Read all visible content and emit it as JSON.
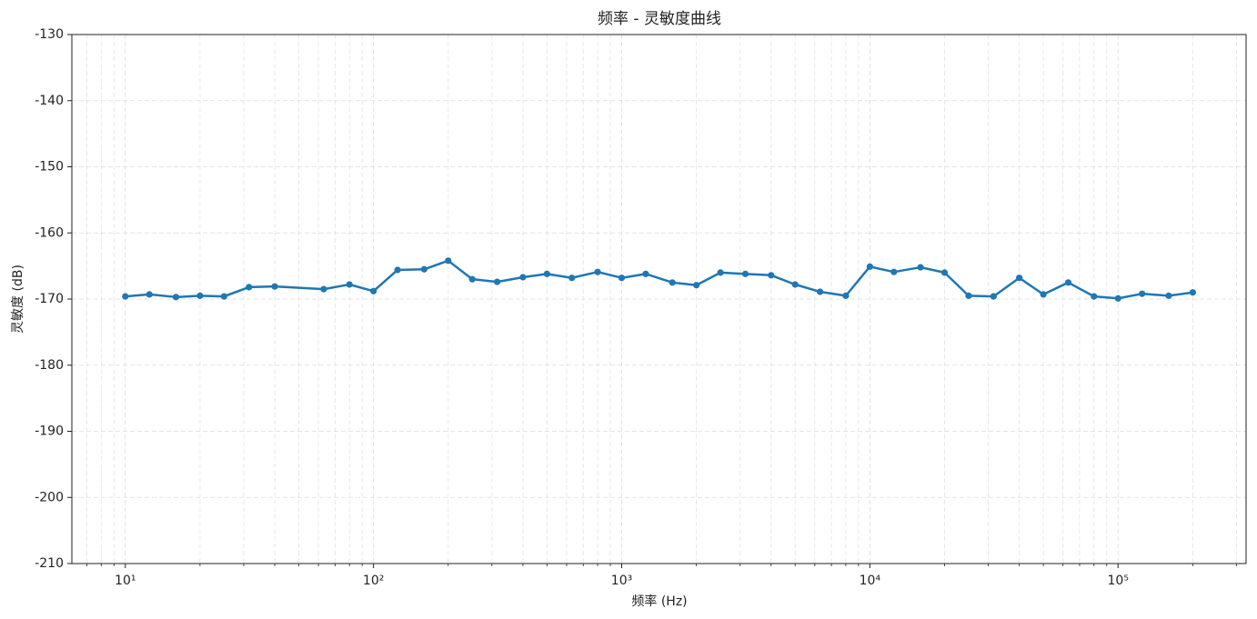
{
  "chart_data": {
    "type": "line",
    "title": "频率 - 灵敏度曲线",
    "x_label": "频率 (Hz)",
    "y_label": "灵敏度 (dB)",
    "x_scale": "log",
    "grid": true,
    "xlim": [
      6.09,
      328000
    ],
    "ylim": [
      -210,
      -130
    ],
    "xticks": [
      {
        "value": 10,
        "label": "10¹"
      },
      {
        "value": 100,
        "label": "10²"
      },
      {
        "value": 1000,
        "label": "10³"
      },
      {
        "value": 10000,
        "label": "10⁴"
      },
      {
        "value": 100000,
        "label": "10⁵"
      }
    ],
    "xminorticks": [
      7,
      8,
      9,
      20,
      30,
      40,
      50,
      60,
      70,
      80,
      90,
      200,
      300,
      400,
      500,
      600,
      700,
      800,
      900,
      2000,
      3000,
      4000,
      5000,
      6000,
      7000,
      8000,
      9000,
      20000,
      30000,
      40000,
      50000,
      60000,
      70000,
      80000,
      90000,
      200000,
      300000
    ],
    "yticks": [
      -210,
      -200,
      -190,
      -180,
      -170,
      -160,
      -150,
      -140,
      -130
    ],
    "x": [
      10,
      12.5,
      16,
      20,
      25,
      31.5,
      40,
      63,
      80,
      100,
      125,
      160,
      200,
      250,
      315,
      400,
      500,
      630,
      800,
      1000,
      1250,
      1600,
      2000,
      2500,
      3150,
      4000,
      5000,
      6300,
      8000,
      10000,
      12500,
      16000,
      20000,
      25000,
      31500,
      40000,
      50000,
      63000,
      80000,
      100000,
      125000,
      160000,
      200000
    ],
    "series": [
      {
        "color": "#1f77b4",
        "values": [
          -169.6,
          -169.3,
          -169.7,
          -169.5,
          -169.6,
          -168.2,
          -168.1,
          -168.5,
          -167.8,
          -168.8,
          -165.6,
          -165.5,
          -164.2,
          -167.0,
          -167.4,
          -166.7,
          -166.2,
          -166.8,
          -165.9,
          -166.8,
          -166.2,
          -167.5,
          -167.9,
          -166.0,
          -166.2,
          -166.4,
          -167.8,
          -168.9,
          -169.5,
          -165.1,
          -165.9,
          -165.2,
          -166.0,
          -169.5,
          -169.6,
          -166.8,
          -169.3,
          -167.5,
          -169.6,
          -169.9,
          -169.2,
          -169.5,
          -169.0
        ]
      }
    ]
  }
}
